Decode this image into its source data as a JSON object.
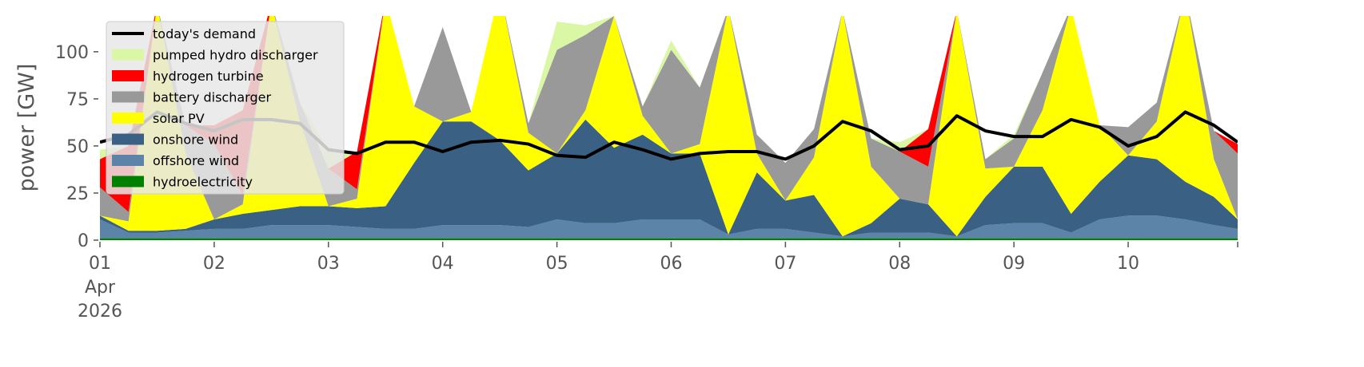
{
  "chart_data": {
    "type": "area",
    "ylabel": "power [GW]",
    "ylim": [
      0,
      119
    ],
    "yticks": [
      0,
      25,
      50,
      75,
      100
    ],
    "xlim": [
      "2026-04-01T00:00",
      "2026-04-10T23:00"
    ],
    "xticks": [
      {
        "value": "2026-04-01T00:00",
        "label": "01\nApr\n2026"
      },
      {
        "value": "2026-04-02T00:00",
        "label": "02"
      },
      {
        "value": "2026-04-03T00:00",
        "label": "03"
      },
      {
        "value": "2026-04-04T00:00",
        "label": "04"
      },
      {
        "value": "2026-04-05T00:00",
        "label": "05"
      },
      {
        "value": "2026-04-06T00:00",
        "label": "06"
      },
      {
        "value": "2026-04-07T00:00",
        "label": "07"
      },
      {
        "value": "2026-04-08T00:00",
        "label": "08"
      },
      {
        "value": "2026-04-09T00:00",
        "label": "09"
      },
      {
        "value": "2026-04-10T00:00",
        "label": "10"
      }
    ],
    "legend": "upper left",
    "x": [
      "2026-04-01T00:00",
      "2026-04-01T06:00",
      "2026-04-01T12:00",
      "2026-04-01T18:00",
      "2026-04-02T00:00",
      "2026-04-02T06:00",
      "2026-04-02T12:00",
      "2026-04-02T18:00",
      "2026-04-03T00:00",
      "2026-04-03T06:00",
      "2026-04-03T12:00",
      "2026-04-03T18:00",
      "2026-04-04T00:00",
      "2026-04-04T06:00",
      "2026-04-04T12:00",
      "2026-04-04T18:00",
      "2026-04-05T00:00",
      "2026-04-05T06:00",
      "2026-04-05T12:00",
      "2026-04-05T18:00",
      "2026-04-06T00:00",
      "2026-04-06T06:00",
      "2026-04-06T12:00",
      "2026-04-06T18:00",
      "2026-04-07T00:00",
      "2026-04-07T06:00",
      "2026-04-07T12:00",
      "2026-04-07T18:00",
      "2026-04-08T00:00",
      "2026-04-08T06:00",
      "2026-04-08T12:00",
      "2026-04-08T18:00",
      "2026-04-09T00:00",
      "2026-04-09T06:00",
      "2026-04-09T12:00",
      "2026-04-09T18:00",
      "2026-04-10T00:00",
      "2026-04-10T06:00",
      "2026-04-10T12:00",
      "2026-04-10T18:00",
      "2026-04-10T23:00"
    ],
    "line_series": {
      "name": "today's demand",
      "color": "#000000",
      "values": [
        52,
        56,
        68,
        62,
        58,
        64,
        64,
        62,
        48,
        46,
        52,
        52,
        47,
        52,
        53,
        51,
        45,
        44,
        52,
        48,
        43,
        46,
        47,
        47,
        43,
        50,
        63,
        58,
        48,
        50,
        66,
        58,
        55,
        55,
        64,
        60,
        50,
        55,
        68,
        61,
        52
      ]
    },
    "series": [
      {
        "name": "hydroelectricity",
        "color": "#008000",
        "values": [
          1,
          1,
          1,
          1,
          1,
          1,
          1,
          1,
          1,
          1,
          1,
          1,
          1,
          1,
          1,
          1,
          1,
          1,
          1,
          1,
          1,
          1,
          1,
          1,
          1,
          1,
          1,
          1,
          1,
          1,
          1,
          1,
          1,
          1,
          1,
          1,
          1,
          1,
          1,
          1,
          1
        ]
      },
      {
        "name": "offshore wind",
        "color": "#5b84a8",
        "values": [
          10,
          3,
          3,
          4,
          5,
          5,
          7,
          7,
          7,
          6,
          5,
          5,
          7,
          7,
          7,
          6,
          10,
          8,
          8,
          10,
          10,
          10,
          2,
          5,
          5,
          3,
          1,
          3,
          3,
          3,
          1,
          7,
          8,
          8,
          3,
          10,
          12,
          12,
          10,
          7,
          5
        ]
      },
      {
        "name": "onshore wind",
        "color": "#3a6083",
        "values": [
          2,
          1,
          1,
          1,
          5,
          8,
          8,
          10,
          10,
          10,
          12,
          35,
          55,
          55,
          45,
          30,
          35,
          55,
          40,
          45,
          35,
          35,
          0,
          30,
          15,
          20,
          0,
          5,
          18,
          15,
          0,
          15,
          30,
          30,
          10,
          20,
          32,
          30,
          20,
          15,
          5
        ]
      },
      {
        "name": "solar PV",
        "color": "#ffff00",
        "values": [
          0,
          5,
          120,
          40,
          0,
          5,
          110,
          45,
          0,
          5,
          110,
          30,
          0,
          5,
          80,
          20,
          0,
          5,
          70,
          10,
          0,
          5,
          120,
          10,
          0,
          20,
          120,
          30,
          0,
          0,
          120,
          15,
          0,
          30,
          110,
          30,
          0,
          20,
          100,
          20,
          0
        ]
      },
      {
        "name": "battery discharger",
        "color": "#999999",
        "values": [
          15,
          5,
          0,
          15,
          40,
          5,
          0,
          10,
          20,
          5,
          0,
          0,
          50,
          0,
          0,
          5,
          55,
          40,
          0,
          5,
          55,
          30,
          0,
          10,
          20,
          15,
          0,
          15,
          25,
          20,
          0,
          5,
          15,
          20,
          0,
          0,
          15,
          10,
          0,
          15,
          35
        ]
      },
      {
        "name": "hydrogen turbine",
        "color": "#ff0000",
        "values": [
          15,
          35,
          0,
          0,
          10,
          45,
          0,
          0,
          0,
          20,
          0,
          0,
          0,
          0,
          0,
          0,
          0,
          0,
          0,
          0,
          0,
          0,
          0,
          0,
          0,
          0,
          0,
          0,
          0,
          20,
          0,
          0,
          0,
          0,
          0,
          0,
          0,
          0,
          0,
          0,
          5
        ]
      },
      {
        "name": "pumped hydro discharger",
        "color": "#d9f7a5",
        "values": [
          5,
          0,
          0,
          0,
          0,
          0,
          0,
          0,
          10,
          0,
          0,
          0,
          0,
          0,
          0,
          0,
          15,
          5,
          0,
          0,
          5,
          0,
          0,
          0,
          0,
          0,
          0,
          0,
          5,
          0,
          0,
          0,
          2,
          0,
          0,
          0,
          0,
          0,
          0,
          0,
          0
        ]
      }
    ]
  }
}
